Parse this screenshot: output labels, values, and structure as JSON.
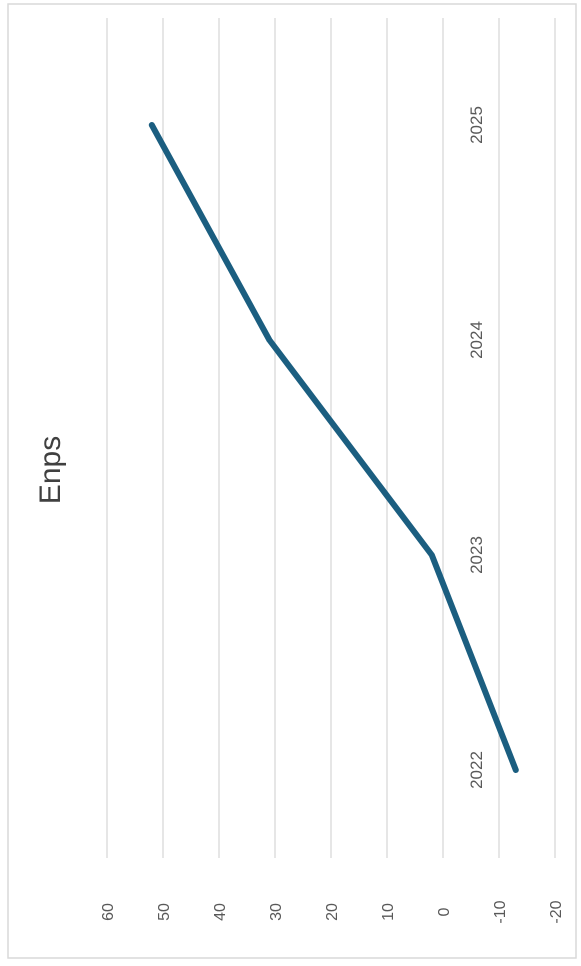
{
  "chart_data": {
    "type": "line",
    "title": "Enps",
    "orientation": "rotated-90-clockwise",
    "categories": [
      "2022",
      "2023",
      "2024",
      "2025"
    ],
    "series": [
      {
        "values": [
          -13,
          2,
          31,
          52
        ]
      }
    ],
    "ylim": [
      -20,
      60
    ],
    "yticks": [
      "-20",
      "-10",
      "0",
      "10",
      "20",
      "30",
      "40",
      "50",
      "60"
    ],
    "grid": true,
    "legend": "none",
    "colors": {
      "line": "#1b5e80",
      "grid": "#d9d9d9",
      "border": "#d9d9d9",
      "text": "#595959",
      "title": "#404040"
    }
  }
}
